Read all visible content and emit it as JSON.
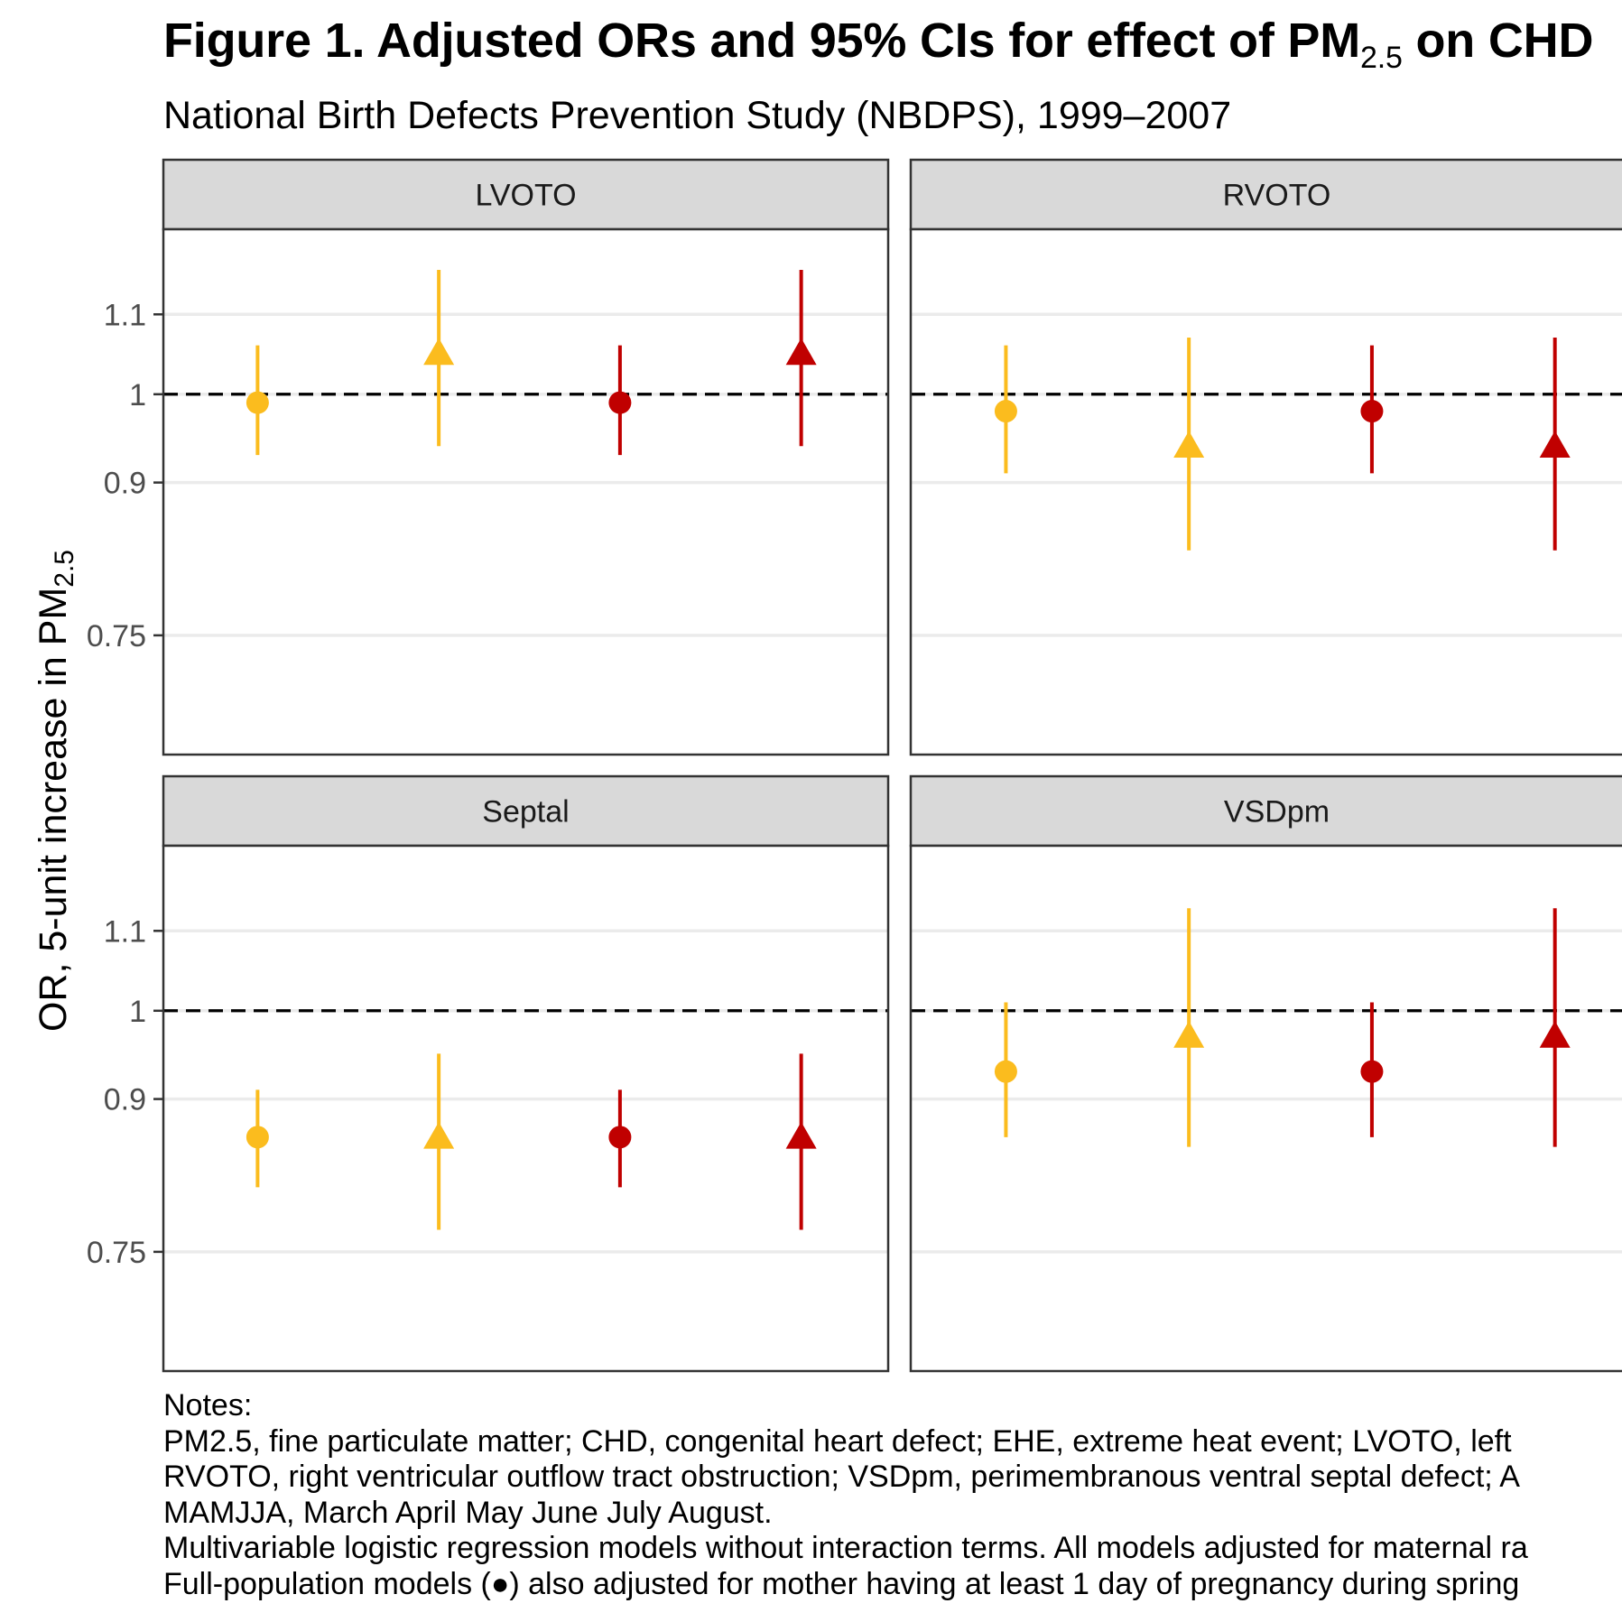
{
  "title_main": "Figure 1. Adjusted ORs and 95% CIs for effect of PM",
  "title_sub": "2.5",
  "title_tail": " on CHD",
  "subtitle": "National Birth Defects Prevention Study (NBDPS), 1999–2007",
  "y_axis_label_main": "OR, 5-unit increase in PM",
  "y_axis_label_sub": "2.5",
  "notes": [
    "Notes:",
    "PM2.5, fine particulate matter; CHD, congenital heart defect; EHE, extreme heat event; LVOTO, left",
    "RVOTO, right ventricular outflow tract obstruction; VSDpm, perimembranous ventral septal defect; A",
    "MAMJJA, March April May June July August.",
    "Multivariable logistic regression models without interaction terms. All models adjusted for maternal ra",
    "Full-population models (●) also adjusted for mother having at least 1 day of pregnancy during spring"
  ],
  "colors": {
    "yellow": "#FBBC1E",
    "red": "#C00000",
    "strip_bg": "#D9D9D9",
    "gridline": "#EBEBEB",
    "panel_border": "#333333"
  },
  "chart_data": {
    "type": "scatter",
    "scale": "log",
    "y_ticks": [
      0.75,
      0.9,
      1,
      1.1
    ],
    "y_tick_labels": [
      "0.75",
      "0.9",
      "1",
      "1.1"
    ],
    "ylim": [
      0.66,
      1.22
    ],
    "reference_line": 1,
    "panels": [
      {
        "name": "LVOTO",
        "points": [
          {
            "est": 0.99,
            "lo": 0.93,
            "hi": 1.06,
            "shape": "circle",
            "color": "yellow"
          },
          {
            "est": 1.05,
            "lo": 0.94,
            "hi": 1.16,
            "shape": "triangle",
            "color": "yellow"
          },
          {
            "est": 0.99,
            "lo": 0.93,
            "hi": 1.06,
            "shape": "circle",
            "color": "red"
          },
          {
            "est": 1.05,
            "lo": 0.94,
            "hi": 1.16,
            "shape": "triangle",
            "color": "red"
          }
        ]
      },
      {
        "name": "RVOTO",
        "points": [
          {
            "est": 0.98,
            "lo": 0.91,
            "hi": 1.06,
            "shape": "circle",
            "color": "yellow"
          },
          {
            "est": 0.94,
            "lo": 0.83,
            "hi": 1.07,
            "shape": "triangle",
            "color": "yellow"
          },
          {
            "est": 0.98,
            "lo": 0.91,
            "hi": 1.06,
            "shape": "circle",
            "color": "red"
          },
          {
            "est": 0.94,
            "lo": 0.83,
            "hi": 1.07,
            "shape": "triangle",
            "color": "red"
          }
        ]
      },
      {
        "name": "Septal",
        "points": [
          {
            "est": 0.86,
            "lo": 0.81,
            "hi": 0.91,
            "shape": "circle",
            "color": "yellow"
          },
          {
            "est": 0.86,
            "lo": 0.77,
            "hi": 0.95,
            "shape": "triangle",
            "color": "yellow"
          },
          {
            "est": 0.86,
            "lo": 0.81,
            "hi": 0.91,
            "shape": "circle",
            "color": "red"
          },
          {
            "est": 0.86,
            "lo": 0.77,
            "hi": 0.95,
            "shape": "triangle",
            "color": "red"
          }
        ]
      },
      {
        "name": "VSDpm",
        "points": [
          {
            "est": 0.93,
            "lo": 0.86,
            "hi": 1.01,
            "shape": "circle",
            "color": "yellow"
          },
          {
            "est": 0.97,
            "lo": 0.85,
            "hi": 1.13,
            "shape": "triangle",
            "color": "yellow"
          },
          {
            "est": 0.93,
            "lo": 0.86,
            "hi": 1.01,
            "shape": "circle",
            "color": "red"
          },
          {
            "est": 0.97,
            "lo": 0.85,
            "hi": 1.13,
            "shape": "triangle",
            "color": "red"
          }
        ]
      }
    ]
  }
}
